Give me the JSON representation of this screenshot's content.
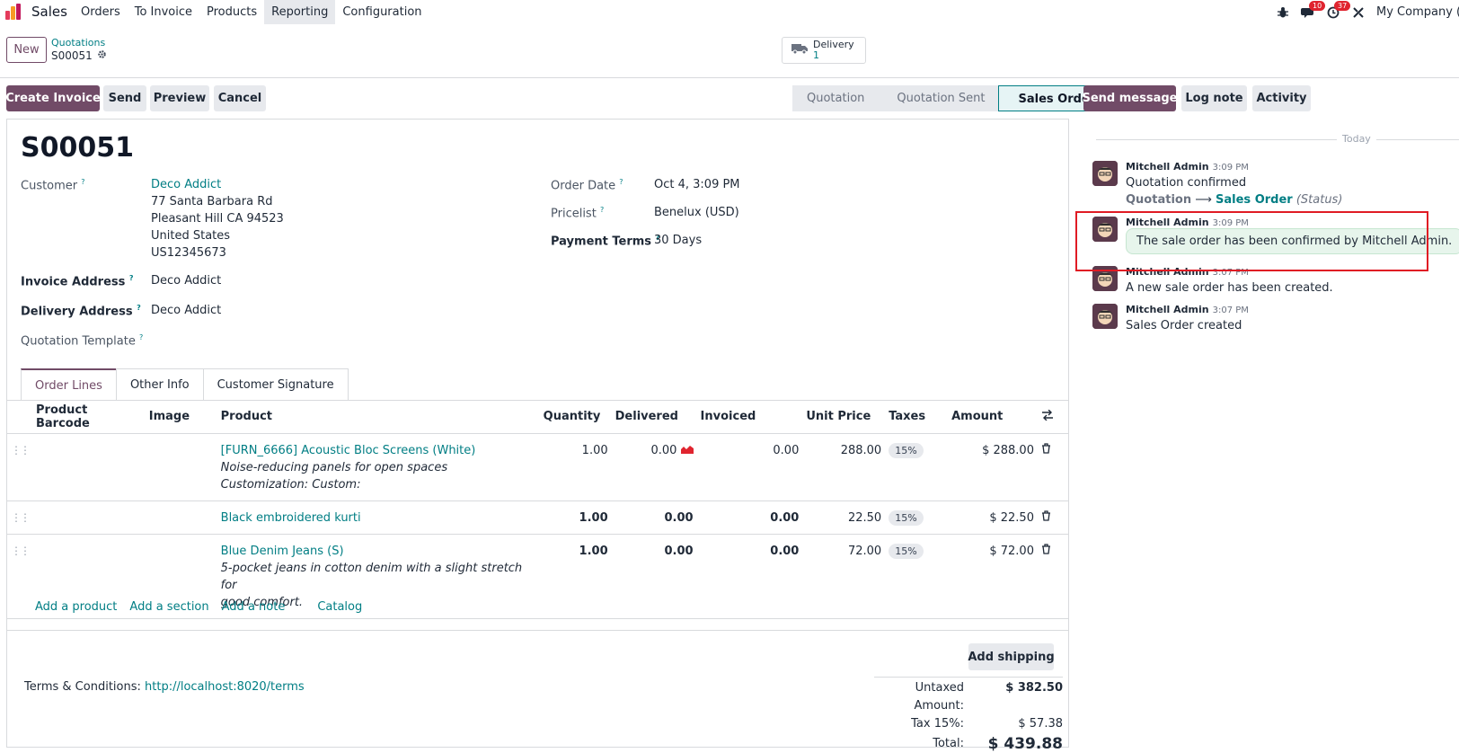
{
  "nav": {
    "brand": "Sales",
    "menu": [
      "Orders",
      "To Invoice",
      "Products",
      "Reporting",
      "Configuration"
    ],
    "active_menu": "Reporting",
    "messages_badge": "10",
    "activities_badge": "37",
    "company": "My Company (Sa"
  },
  "control": {
    "new_label": "New",
    "breadcrumb_parent": "Quotations",
    "breadcrumb_current": "S00051",
    "smart_delivery_label": "Delivery",
    "smart_delivery_count": "1"
  },
  "actions": {
    "create_invoice": "Create Invoice",
    "send": "Send",
    "preview": "Preview",
    "cancel": "Cancel"
  },
  "statusbar": {
    "stages": [
      "Quotation",
      "Quotation Sent",
      "Sales Order"
    ],
    "current": "Sales Order"
  },
  "record": {
    "name": "S00051",
    "customer_label": "Customer",
    "customer_name": "Deco Addict",
    "customer_address": [
      "77 Santa Barbara Rd",
      "Pleasant Hill CA 94523",
      "United States",
      "US12345673"
    ],
    "invoice_address_label": "Invoice Address",
    "invoice_address": "Deco Addict",
    "delivery_address_label": "Delivery Address",
    "delivery_address": "Deco Addict",
    "template_label": "Quotation Template",
    "order_date_label": "Order Date",
    "order_date": "Oct 4, 3:09 PM",
    "pricelist_label": "Pricelist",
    "pricelist": "Benelux (USD)",
    "payment_terms_label": "Payment Terms",
    "payment_terms": "30 Days",
    "help_mark": "?"
  },
  "tabs": [
    "Order Lines",
    "Other Info",
    "Customer Signature"
  ],
  "lines": {
    "headers": [
      "Product Barcode",
      "Image",
      "Product",
      "Quantity",
      "Delivered",
      "Invoiced",
      "Unit Price",
      "Taxes",
      "Amount"
    ],
    "rows": [
      {
        "product": "[FURN_6666] Acoustic Bloc Screens (White)",
        "desc1": "Noise-reducing panels for open spaces",
        "desc2": "Customization: Custom:",
        "qty": "1.00",
        "delivered": "0.00",
        "invoiced": "0.00",
        "price": "288.00",
        "tax": "15%",
        "amount": "$ 288.00"
      },
      {
        "product": "Black embroidered kurti",
        "desc1": "",
        "desc2": "",
        "qty": "1.00",
        "delivered": "0.00",
        "invoiced": "0.00",
        "price": "22.50",
        "tax": "15%",
        "amount": "$ 22.50"
      },
      {
        "product": "Blue Denim Jeans (S)",
        "desc1": "5-pocket jeans in cotton denim with a slight stretch for",
        "desc2": "good comfort.",
        "qty": "1.00",
        "delivered": "0.00",
        "invoiced": "0.00",
        "price": "72.00",
        "tax": "15%",
        "amount": "$ 72.00"
      }
    ],
    "add_links": [
      "Add a product",
      "Add a section",
      "Add a note",
      "Catalog"
    ]
  },
  "footer": {
    "add_shipping": "Add shipping",
    "terms_label": "Terms & Conditions:",
    "terms_link": "http://localhost:8020/terms",
    "untaxed_label": "Untaxed Amount:",
    "untaxed_value": "$ 382.50",
    "tax_label": "Tax 15%:",
    "tax_value": "$ 57.38",
    "total_label": "Total:",
    "total_value": "$ 439.88"
  },
  "chatter": {
    "send_message": "Send message",
    "log_note": "Log note",
    "activity": "Activity",
    "today": "Today",
    "messages": [
      {
        "author": "Mitchell Admin",
        "time": "3:09 PM",
        "body": "Quotation confirmed",
        "track_old": "Quotation",
        "track_new": "Sales Order",
        "track_field": "(Status)"
      },
      {
        "author": "Mitchell Admin",
        "time": "3:09 PM",
        "body": "The sale order has been confirmed by Mitchell Admin."
      },
      {
        "author": "Mitchell Admin",
        "time": "3:07 PM",
        "body": "A new sale order has been created."
      },
      {
        "author": "Mitchell Admin",
        "time": "3:07 PM",
        "body": "Sales Order created"
      }
    ]
  },
  "colors": {
    "brand": "#714b67",
    "link": "#017e84",
    "highlight": "#e01b24"
  }
}
